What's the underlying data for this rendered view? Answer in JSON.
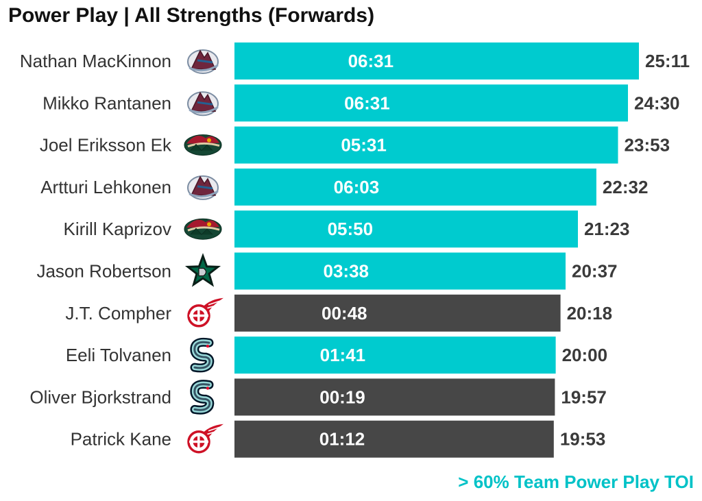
{
  "chart_data": {
    "type": "bar",
    "orientation": "horizontal",
    "title": "Power Play | All Strengths (Forwards)",
    "footnote": "> 60% Team Power Play TOI",
    "colors": {
      "highlight": "#00CBCF",
      "default": "#474747",
      "footnote": "#00C2C7",
      "name_text": "#333333",
      "total_label": "#3a3a3a",
      "inner_label": "#ffffff"
    },
    "players": [
      {
        "name": "Nathan MacKinnon",
        "team_logo": "avalanche-logo-icon",
        "total": "25:11",
        "pp": "06:31",
        "highlight": true
      },
      {
        "name": "Mikko Rantanen",
        "team_logo": "avalanche-logo-icon",
        "total": "24:30",
        "pp": "06:31",
        "highlight": true
      },
      {
        "name": "Joel Eriksson Ek",
        "team_logo": "wild-logo-icon",
        "total": "23:53",
        "pp": "05:31",
        "highlight": true
      },
      {
        "name": "Artturi Lehkonen",
        "team_logo": "avalanche-logo-icon",
        "total": "22:32",
        "pp": "06:03",
        "highlight": true
      },
      {
        "name": "Kirill Kaprizov",
        "team_logo": "wild-logo-icon",
        "total": "21:23",
        "pp": "05:50",
        "highlight": true
      },
      {
        "name": "Jason Robertson",
        "team_logo": "stars-logo-icon",
        "total": "20:37",
        "pp": "03:38",
        "highlight": true
      },
      {
        "name": "J.T. Compher",
        "team_logo": "red-wings-logo-icon",
        "total": "20:18",
        "pp": "00:48",
        "highlight": false
      },
      {
        "name": "Eeli Tolvanen",
        "team_logo": "kraken-logo-icon",
        "total": "20:00",
        "pp": "01:41",
        "highlight": true
      },
      {
        "name": "Oliver Bjorkstrand",
        "team_logo": "kraken-logo-icon",
        "total": "19:57",
        "pp": "00:19",
        "highlight": false
      },
      {
        "name": "Patrick Kane",
        "team_logo": "red-wings-logo-icon",
        "total": "19:53",
        "pp": "01:12",
        "highlight": false
      }
    ]
  }
}
